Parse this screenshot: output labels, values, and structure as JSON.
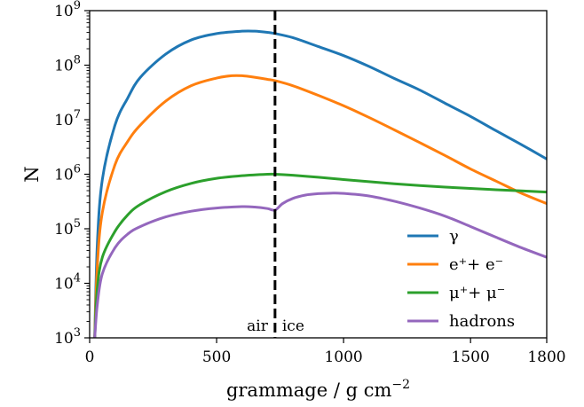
{
  "chart_data": {
    "type": "line",
    "title": "",
    "xlabel": "grammage / g cm",
    "xlabel_exp": "−2",
    "ylabel": "N",
    "xlim": [
      0,
      1800
    ],
    "ylim": [
      1000,
      1000000000
    ],
    "yscale": "log",
    "grid": false,
    "legend_position": "lower-right",
    "x_ticks": [
      {
        "value": 0,
        "label": "0"
      },
      {
        "value": 500,
        "label": "500"
      },
      {
        "value": 1000,
        "label": "1000"
      },
      {
        "value": 1500,
        "label": "1500"
      },
      {
        "value": 1800,
        "label": "1800"
      }
    ],
    "y_ticks": [
      {
        "value": 1000,
        "base": "10",
        "exp": "3"
      },
      {
        "value": 10000,
        "base": "10",
        "exp": "4"
      },
      {
        "value": 100000,
        "base": "10",
        "exp": "5"
      },
      {
        "value": 1000000,
        "base": "10",
        "exp": "6"
      },
      {
        "value": 10000000,
        "base": "10",
        "exp": "7"
      },
      {
        "value": 100000000,
        "base": "10",
        "exp": "8"
      },
      {
        "value": 1000000000,
        "base": "10",
        "exp": "9"
      }
    ],
    "boundary": {
      "x": 730,
      "left_label": "air",
      "right_label": "ice",
      "color": "#000000"
    },
    "series": [
      {
        "name": "γ",
        "color": "#1f77b4",
        "x": [
          20,
          30,
          50,
          100,
          150,
          200,
          300,
          400,
          500,
          600,
          650,
          700,
          730,
          800,
          900,
          1000,
          1100,
          1200,
          1300,
          1400,
          1500,
          1600,
          1700,
          1800
        ],
        "y": [
          1000,
          50000,
          800000,
          8000000,
          25000000,
          60000000,
          160000000,
          290000000,
          380000000,
          420000000,
          420000000,
          400000000,
          380000000,
          320000000,
          220000000,
          150000000,
          95000000,
          57000000,
          35000000,
          20000000,
          11500000,
          6300000,
          3500000,
          1900000
        ]
      },
      {
        "name": "e⁺+ e⁻",
        "color": "#ff7f0e",
        "x": [
          20,
          30,
          50,
          100,
          150,
          200,
          300,
          400,
          500,
          560,
          600,
          650,
          700,
          730,
          800,
          900,
          1000,
          1100,
          1200,
          1300,
          1400,
          1500,
          1600,
          1700,
          1800
        ],
        "y": [
          1000,
          20000,
          200000,
          1500000,
          4000000,
          8000000,
          22000000,
          42000000,
          58000000,
          64000000,
          64000000,
          60000000,
          55000000,
          52000000,
          42000000,
          28000000,
          18000000,
          11000000,
          6500000,
          3800000,
          2200000,
          1250000,
          750000,
          450000,
          290000
        ]
      },
      {
        "name": "μ⁺+ μ⁻",
        "color": "#2ca02c",
        "x": [
          20,
          30,
          50,
          100,
          150,
          200,
          300,
          400,
          500,
          600,
          700,
          730,
          800,
          900,
          1000,
          1100,
          1200,
          1300,
          1400,
          1500,
          1600,
          1700,
          1800
        ],
        "y": [
          1000,
          8000,
          30000,
          90000,
          180000,
          280000,
          480000,
          680000,
          840000,
          940000,
          1000000,
          1000000,
          960000,
          880000,
          800000,
          730000,
          670000,
          620000,
          580000,
          550000,
          520000,
          495000,
          470000
        ]
      },
      {
        "name": "hadrons",
        "color": "#9467bd",
        "x": [
          20,
          30,
          50,
          100,
          150,
          200,
          300,
          400,
          500,
          600,
          650,
          700,
          730,
          760,
          800,
          850,
          900,
          950,
          1000,
          1100,
          1200,
          1300,
          1400,
          1500,
          1600,
          1700,
          1800
        ],
        "y": [
          1000,
          4000,
          15000,
          45000,
          80000,
          110000,
          165000,
          210000,
          240000,
          255000,
          250000,
          235000,
          220000,
          290000,
          360000,
          415000,
          440000,
          450000,
          445000,
          400000,
          320000,
          240000,
          170000,
          110000,
          70000,
          45000,
          30000
        ]
      }
    ]
  }
}
